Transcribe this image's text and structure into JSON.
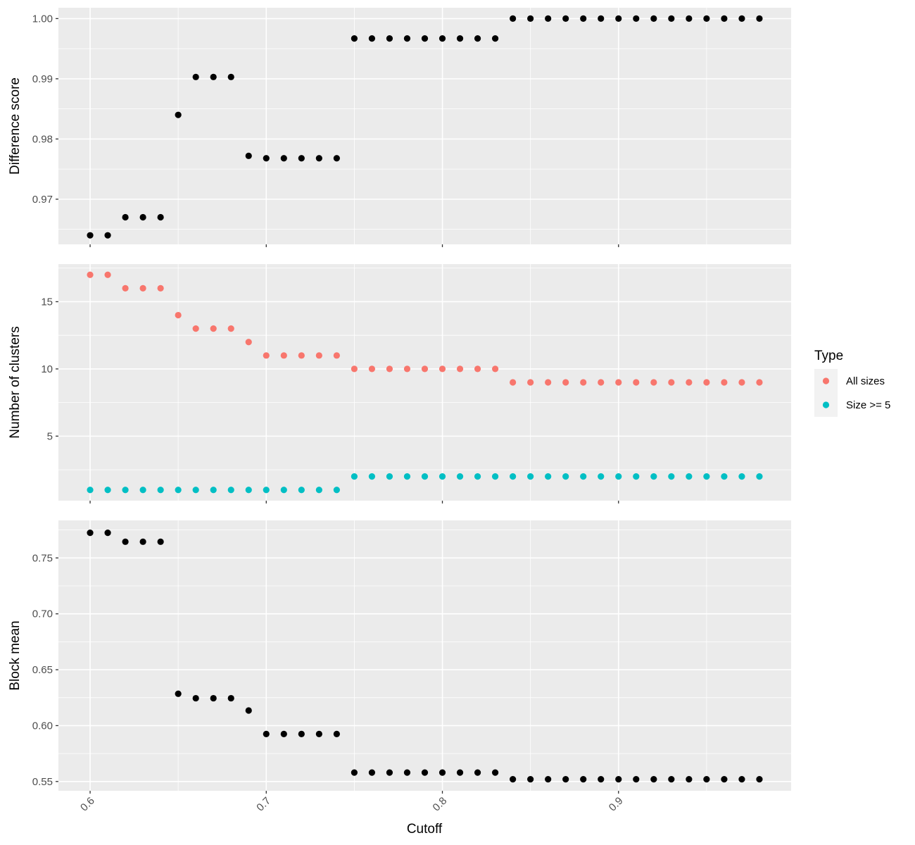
{
  "chart_data": {
    "type": "scatter",
    "xlabel": "Cutoff",
    "xlim": [
      0.582,
      0.998
    ],
    "x_ticks": [
      0.6,
      0.7,
      0.8,
      0.9
    ],
    "x_tick_labels": [
      "0.6",
      "0.7",
      "0.8",
      "0.9"
    ],
    "x": [
      0.6,
      0.61,
      0.62,
      0.63,
      0.64,
      0.65,
      0.66,
      0.67,
      0.68,
      0.69,
      0.7,
      0.71,
      0.72,
      0.73,
      0.74,
      0.75,
      0.76,
      0.77,
      0.78,
      0.79,
      0.8,
      0.81,
      0.82,
      0.83,
      0.84,
      0.85,
      0.86,
      0.87,
      0.88,
      0.89,
      0.9,
      0.91,
      0.92,
      0.93,
      0.94,
      0.95,
      0.96,
      0.97,
      0.98
    ],
    "grid": true,
    "panels": [
      {
        "ylabel": "Difference score",
        "ylim": [
          0.9625,
          1.0018
        ],
        "y_ticks": [
          0.97,
          0.98,
          0.99,
          1.0
        ],
        "y_tick_labels": [
          "0.97",
          "0.98",
          "0.99",
          "1.00"
        ],
        "series": [
          {
            "color": "#000000",
            "values": [
              0.964,
              0.964,
              0.967,
              0.967,
              0.967,
              0.984,
              0.9903,
              0.9903,
              0.9903,
              0.9772,
              0.9768,
              0.9768,
              0.9768,
              0.9768,
              0.9768,
              0.9967,
              0.9967,
              0.9967,
              0.9967,
              0.9967,
              0.9967,
              0.9967,
              0.9967,
              0.9967,
              1.0,
              1.0,
              1.0,
              1.0,
              1.0,
              1.0,
              1.0,
              1.0,
              1.0,
              1.0,
              1.0,
              1.0,
              1.0,
              1.0,
              1.0
            ]
          }
        ]
      },
      {
        "ylabel": "Number of clusters",
        "ylim": [
          0.2,
          17.8
        ],
        "y_ticks": [
          5,
          10,
          15
        ],
        "y_tick_labels": [
          "5",
          "10",
          "15"
        ],
        "series": [
          {
            "name": "All sizes",
            "color": "#F8766D",
            "values": [
              17,
              17,
              16,
              16,
              16,
              14,
              13,
              13,
              13,
              12,
              11,
              11,
              11,
              11,
              11,
              10,
              10,
              10,
              10,
              10,
              10,
              10,
              10,
              10,
              9,
              9,
              9,
              9,
              9,
              9,
              9,
              9,
              9,
              9,
              9,
              9,
              9,
              9,
              9
            ]
          },
          {
            "name": "Size >= 5",
            "color": "#00BFC4",
            "values": [
              1,
              1,
              1,
              1,
              1,
              1,
              1,
              1,
              1,
              1,
              1,
              1,
              1,
              1,
              1,
              2,
              2,
              2,
              2,
              2,
              2,
              2,
              2,
              2,
              2,
              2,
              2,
              2,
              2,
              2,
              2,
              2,
              2,
              2,
              2,
              2,
              2,
              2,
              2
            ]
          }
        ]
      },
      {
        "ylabel": "Block mean",
        "ylim": [
          0.5417,
          0.7836
        ],
        "y_ticks": [
          0.55,
          0.6,
          0.65,
          0.7,
          0.75
        ],
        "y_tick_labels": [
          "0.55",
          "0.60",
          "0.65",
          "0.70",
          "0.75"
        ],
        "series": [
          {
            "color": "#000000",
            "values": [
              0.7725,
              0.7725,
              0.7645,
              0.7645,
              0.7645,
              0.6285,
              0.6245,
              0.6245,
              0.6245,
              0.6135,
              0.5925,
              0.5925,
              0.5925,
              0.5925,
              0.5925,
              0.558,
              0.558,
              0.558,
              0.558,
              0.558,
              0.558,
              0.558,
              0.558,
              0.558,
              0.552,
              0.552,
              0.552,
              0.552,
              0.552,
              0.552,
              0.552,
              0.552,
              0.552,
              0.552,
              0.552,
              0.552,
              0.552,
              0.552,
              0.552
            ]
          }
        ]
      }
    ],
    "legend": {
      "title": "Type",
      "position": "right",
      "entries": [
        {
          "label": "All sizes",
          "color": "#F8766D"
        },
        {
          "label": "Size >= 5",
          "color": "#00BFC4"
        }
      ]
    }
  }
}
